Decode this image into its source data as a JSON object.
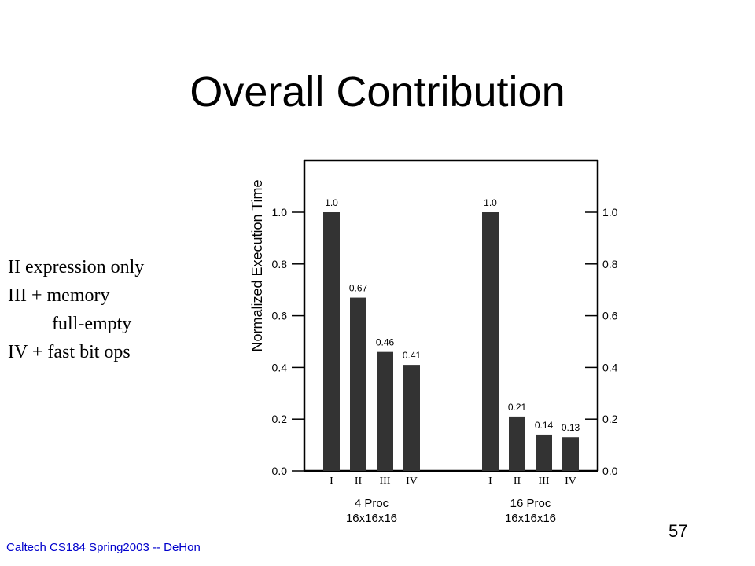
{
  "slide": {
    "title": "Overall Contribution",
    "notes": [
      "II expression only",
      "III + memory",
      "full-empty",
      "IV + fast bit ops"
    ],
    "footer": "Caltech CS184 Spring2003 -- DeHon",
    "page_number": "57"
  },
  "colors": {
    "bar": "#333333",
    "axis": "#000000",
    "footer_text": "#0000cc"
  },
  "chart_data": {
    "type": "bar",
    "ylabel": "Normalized Execution Time",
    "ylim": [
      0,
      1.2
    ],
    "yticks": [
      "0.0",
      "0.2",
      "0.4",
      "0.6",
      "0.8",
      "1.0"
    ],
    "groups": [
      {
        "label": "4 Proc",
        "sublabel": "16x16x16",
        "categories": [
          "I",
          "II",
          "III",
          "IV"
        ],
        "values": [
          1.0,
          0.67,
          0.46,
          0.41
        ],
        "value_labels": [
          "1.0",
          "0.67",
          "0.46",
          "0.41"
        ]
      },
      {
        "label": "16 Proc",
        "sublabel": "16x16x16",
        "categories": [
          "I",
          "II",
          "III",
          "IV"
        ],
        "values": [
          1.0,
          0.21,
          0.14,
          0.13
        ],
        "value_labels": [
          "1.0",
          "0.21",
          "0.14",
          "0.13"
        ]
      }
    ]
  }
}
